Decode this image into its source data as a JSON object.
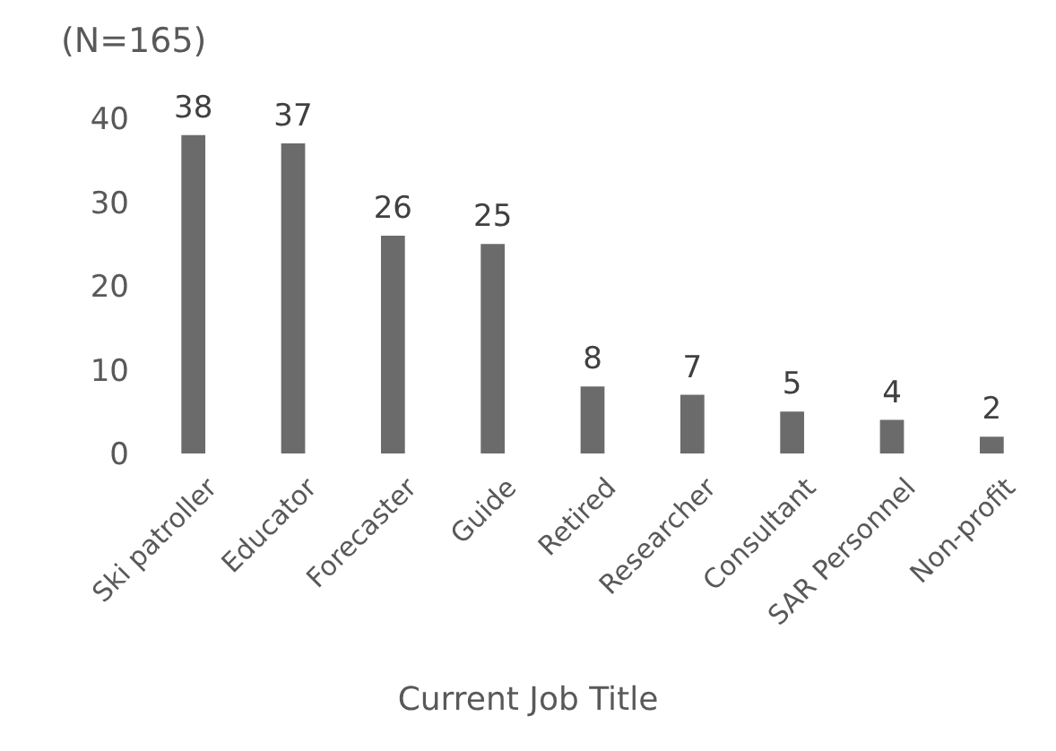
{
  "chart_data": {
    "type": "bar",
    "title": "(N=165)",
    "xlabel": "Current Job Title",
    "categories": [
      "Ski patroller",
      "Educator",
      "Forecaster",
      "Guide",
      "Retired",
      "Researcher",
      "Consultant",
      "SAR Personnel",
      "Non-profit"
    ],
    "values": [
      38,
      37,
      26,
      25,
      8,
      7,
      5,
      4,
      2
    ],
    "color": "#6b6b6b",
    "ylim": [
      0,
      40
    ],
    "yticks": [
      0,
      10,
      20,
      30,
      40
    ],
    "grid": false,
    "data_labels": true
  }
}
